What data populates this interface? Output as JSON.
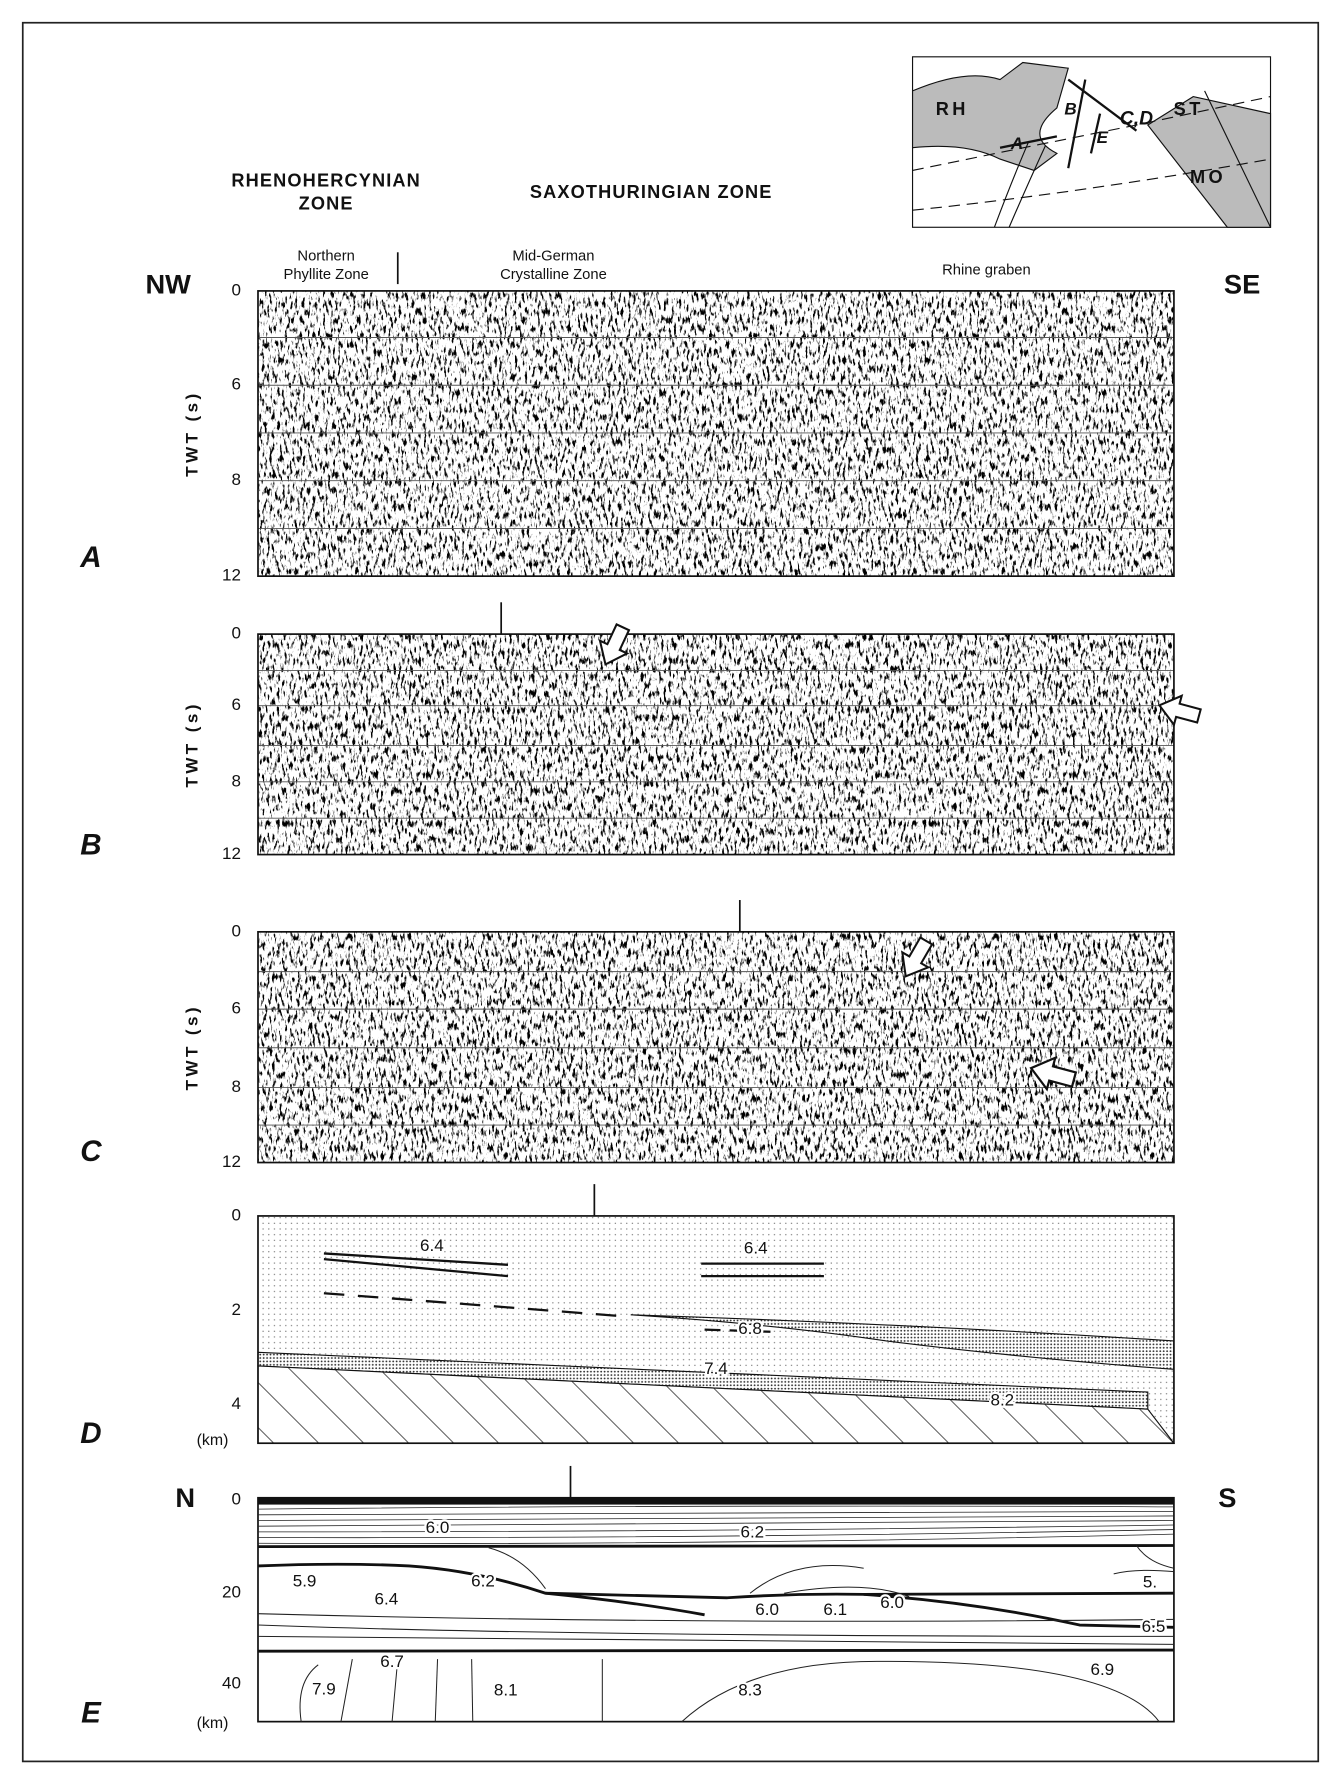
{
  "zones": [
    {
      "lines": [
        "RHENOHERCYNIAN",
        "ZONE"
      ]
    },
    {
      "lines": [
        "SAXOTHURINGIAN ZONE"
      ]
    }
  ],
  "subzones": [
    {
      "lines": [
        "Northern",
        "Phyllite Zone"
      ]
    },
    {
      "lines": [
        "Mid-German",
        "Crystalline Zone"
      ]
    },
    {
      "lines": [
        "Rhine graben"
      ]
    }
  ],
  "directions": {
    "left": "NW",
    "right": "SE"
  },
  "inset": {
    "labels": [
      "RH",
      "B",
      "C,D",
      "ST",
      "A",
      "E",
      "MO"
    ]
  },
  "panels": [
    {
      "letter": "A",
      "axis_title": "TWT (s)",
      "ticks": [
        0,
        6,
        8,
        12
      ]
    },
    {
      "letter": "B",
      "axis_title": "TWT (s)",
      "ticks": [
        0,
        6,
        8,
        12
      ]
    },
    {
      "letter": "C",
      "axis_title": "TWT (s)",
      "ticks": [
        0,
        6,
        8,
        12
      ]
    },
    {
      "letter": "D",
      "ticks": [
        0,
        2,
        4
      ],
      "unit": "(km)",
      "labels": [
        "6.4",
        "6.4",
        "6.8",
        "7.4",
        "8.2"
      ]
    },
    {
      "letter": "E",
      "directions": {
        "left": "N",
        "right": "S"
      },
      "ticks": [
        0,
        20,
        40
      ],
      "unit": "(km)",
      "labels": [
        "6.0",
        "6.2",
        "5.9",
        "6.2",
        "6.4",
        "6.0",
        "6.1",
        "6.0",
        "5.",
        "6.5",
        "6.7",
        "6.9",
        "7.9",
        "8.1",
        "8.3"
      ]
    }
  ]
}
